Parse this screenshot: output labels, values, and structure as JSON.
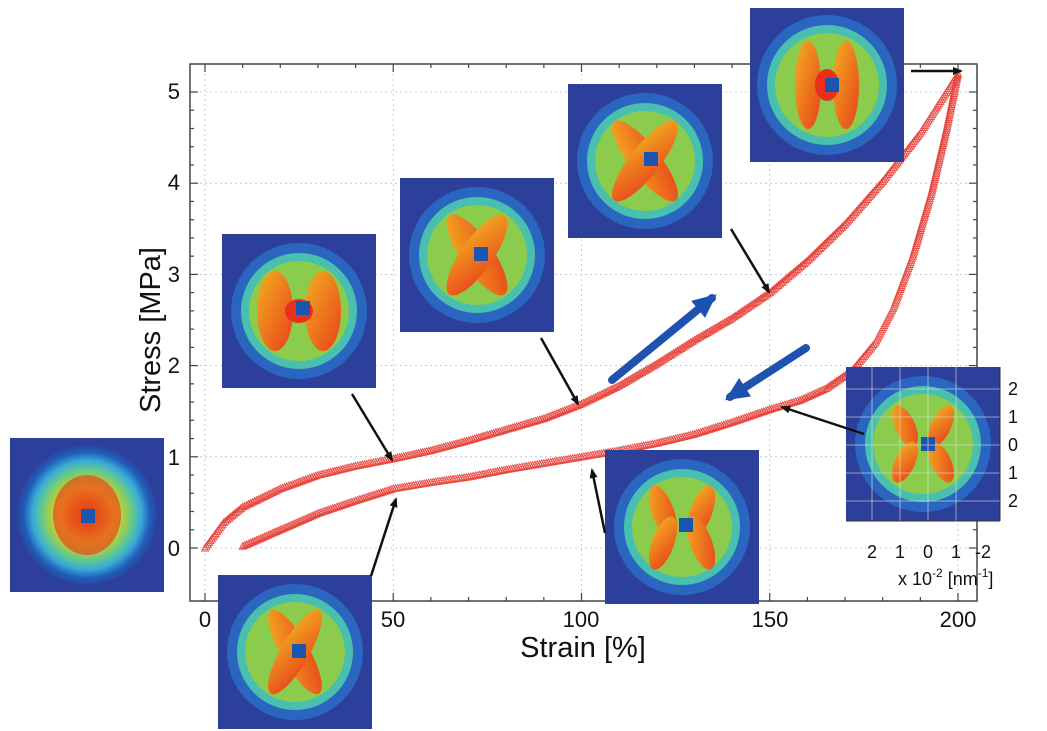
{
  "chart_data": {
    "type": "line",
    "xlabel": "Strain [%]",
    "ylabel": "Stress [MPa]",
    "xlim": [
      -5,
      205
    ],
    "ylim": [
      -0.55,
      5.35
    ],
    "x_ticks": [
      "0",
      "50",
      "100",
      "150",
      "200"
    ],
    "y_ticks": [
      "0",
      "1",
      "2",
      "3",
      "4",
      "5"
    ],
    "grid": true,
    "series": [
      {
        "x": [
          0,
          5,
          10,
          20,
          30,
          40,
          50,
          60,
          70,
          80,
          90,
          100,
          110,
          120,
          130,
          140,
          150,
          160,
          170,
          180,
          190,
          200
        ],
        "y": [
          0,
          0.28,
          0.45,
          0.65,
          0.8,
          0.9,
          0.98,
          1.07,
          1.18,
          1.3,
          1.42,
          1.58,
          1.78,
          2.02,
          2.28,
          2.52,
          2.8,
          3.15,
          3.55,
          4.02,
          4.55,
          5.2
        ],
        "color": "#e8473f"
      },
      {
        "x": [
          200,
          197,
          193,
          188,
          183,
          178,
          172,
          165,
          158,
          150,
          140,
          130,
          120,
          110,
          100,
          90,
          80,
          70,
          60,
          50,
          40,
          30,
          20,
          10
        ],
        "y": [
          5.2,
          4.6,
          3.9,
          3.2,
          2.65,
          2.25,
          1.95,
          1.75,
          1.62,
          1.52,
          1.38,
          1.25,
          1.15,
          1.07,
          1.0,
          0.93,
          0.86,
          0.78,
          0.72,
          0.65,
          0.52,
          0.38,
          0.2,
          0.02
        ],
        "color": "#e8473f"
      }
    ],
    "inset_axis": {
      "y_ticks": [
        "2",
        "1",
        "0",
        "1",
        "2"
      ],
      "x_ticks": [
        "2",
        "1",
        "0",
        "1",
        "-2"
      ],
      "label_prefix": "x 10",
      "label_exp": "-2",
      "label_unit": " [nm",
      "label_unit_exp": "-1",
      "label_close": "]"
    }
  }
}
